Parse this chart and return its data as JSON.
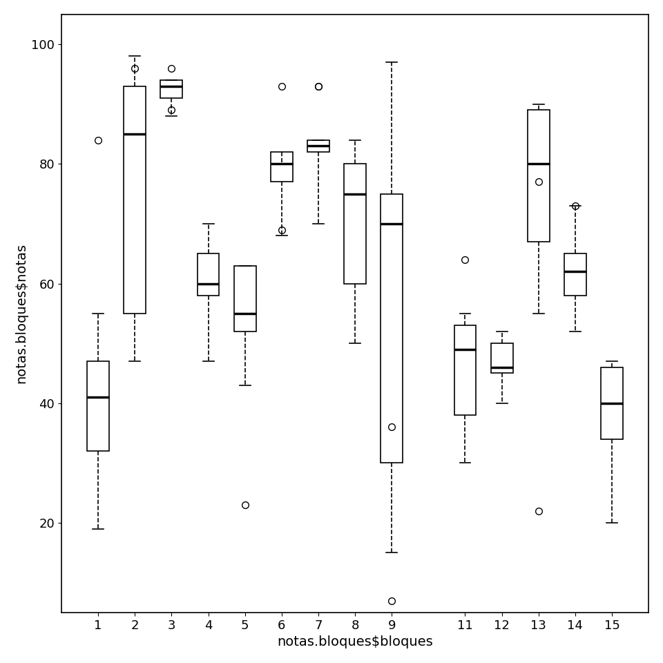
{
  "title": "",
  "xlabel": "notas.bloques$bloques",
  "ylabel": "notas.bloques$notas",
  "ylim": [
    5,
    105
  ],
  "yticks": [
    20,
    40,
    60,
    80,
    100
  ],
  "xtick_labels": [
    "1",
    "2",
    "3",
    "4",
    "5",
    "6",
    "7",
    "8",
    "9",
    "11",
    "12",
    "13",
    "14",
    "15"
  ],
  "xtick_positions": [
    1,
    2,
    3,
    4,
    5,
    6,
    7,
    8,
    9,
    11,
    12,
    13,
    14,
    15
  ],
  "box_data": {
    "1": {
      "whislo": 19,
      "q1": 32,
      "med": 41,
      "q3": 47,
      "whishi": 55,
      "fliers": [
        84
      ]
    },
    "2": {
      "whislo": 47,
      "q1": 55,
      "med": 85,
      "q3": 93,
      "whishi": 98,
      "fliers": [
        96
      ]
    },
    "3": {
      "whislo": 88,
      "q1": 91,
      "med": 93,
      "q3": 94,
      "whishi": 94,
      "fliers": [
        89,
        96
      ]
    },
    "4": {
      "whislo": 47,
      "q1": 58,
      "med": 60,
      "q3": 65,
      "whishi": 70,
      "fliers": []
    },
    "5": {
      "whislo": 43,
      "q1": 52,
      "med": 55,
      "q3": 63,
      "whishi": 63,
      "fliers": [
        23
      ]
    },
    "6": {
      "whislo": 68,
      "q1": 77,
      "med": 80,
      "q3": 82,
      "whishi": 80,
      "fliers": [
        93,
        69
      ]
    },
    "7": {
      "whislo": 70,
      "q1": 82,
      "med": 83,
      "q3": 84,
      "whishi": 84,
      "fliers": [
        93,
        93
      ]
    },
    "8": {
      "whislo": 50,
      "q1": 60,
      "med": 75,
      "q3": 80,
      "whishi": 84,
      "fliers": []
    },
    "9": {
      "whislo": 15,
      "q1": 30,
      "med": 70,
      "q3": 75,
      "whishi": 97,
      "fliers": [
        36,
        7
      ]
    },
    "11": {
      "whislo": 30,
      "q1": 38,
      "med": 49,
      "q3": 53,
      "whishi": 55,
      "fliers": [
        64
      ]
    },
    "12": {
      "whislo": 40,
      "q1": 45,
      "med": 46,
      "q3": 50,
      "whishi": 52,
      "fliers": []
    },
    "13": {
      "whislo": 55,
      "q1": 67,
      "med": 80,
      "q3": 89,
      "whishi": 90,
      "fliers": [
        77,
        22
      ]
    },
    "14": {
      "whislo": 52,
      "q1": 58,
      "med": 62,
      "q3": 65,
      "whishi": 73,
      "fliers": [
        73
      ]
    },
    "15": {
      "whislo": 20,
      "q1": 34,
      "med": 40,
      "q3": 46,
      "whishi": 47,
      "fliers": []
    }
  },
  "background_color": "#ffffff",
  "box_facecolor": "#ffffff",
  "box_edgecolor": "#000000",
  "median_color": "#000000",
  "whisker_color": "#000000",
  "flier_color": "#000000",
  "title_fontsize": 14,
  "label_fontsize": 14,
  "tick_fontsize": 13
}
